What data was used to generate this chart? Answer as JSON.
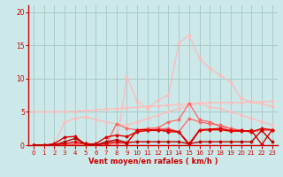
{
  "bg_color": "#cce8e8",
  "grid_color": "#aacccc",
  "axis_color": "#cc0000",
  "text_color": "#cc0000",
  "xlabel": "Vent moyen/en rafales ( km/h )",
  "xlim": [
    -0.5,
    23.5
  ],
  "ylim": [
    0,
    21
  ],
  "yticks": [
    0,
    5,
    10,
    15,
    20
  ],
  "xticks": [
    0,
    1,
    2,
    3,
    4,
    5,
    6,
    7,
    8,
    9,
    10,
    11,
    12,
    13,
    14,
    15,
    16,
    17,
    18,
    19,
    20,
    21,
    22,
    23
  ],
  "series": [
    {
      "x": [
        0,
        1,
        2,
        3,
        4,
        5,
        6,
        7,
        8,
        9,
        10,
        11,
        12,
        13,
        14,
        15,
        16,
        17,
        18,
        19,
        20,
        21,
        22,
        23
      ],
      "y": [
        5.0,
        5.0,
        5.0,
        5.0,
        5.1,
        5.2,
        5.3,
        5.4,
        5.5,
        5.6,
        5.7,
        5.8,
        5.9,
        6.0,
        6.1,
        6.2,
        6.3,
        6.4,
        6.4,
        6.4,
        6.4,
        6.5,
        6.5,
        6.6
      ],
      "color": "#ffbbbb",
      "lw": 0.9,
      "marker": "D",
      "ms": 1.5
    },
    {
      "x": [
        0,
        1,
        2,
        3,
        4,
        5,
        6,
        7,
        8,
        9,
        10,
        11,
        12,
        13,
        14,
        15,
        16,
        17,
        18,
        19,
        20,
        21,
        22,
        23
      ],
      "y": [
        0,
        0,
        0,
        3.5,
        4.0,
        4.3,
        3.8,
        3.5,
        3.2,
        3.0,
        3.5,
        4.0,
        4.5,
        5.0,
        5.5,
        5.9,
        6.4,
        5.7,
        5.5,
        5.0,
        4.5,
        4.0,
        3.5,
        3.0
      ],
      "color": "#ffbbbb",
      "lw": 0.9,
      "marker": "D",
      "ms": 1.5
    },
    {
      "x": [
        0,
        1,
        2,
        3,
        4,
        5,
        6,
        7,
        8,
        9,
        10,
        11,
        12,
        13,
        14,
        15,
        16,
        17,
        18,
        19,
        20,
        21,
        22,
        23
      ],
      "y": [
        0,
        0,
        0,
        0,
        0,
        0,
        0,
        0,
        0,
        10.3,
        6.5,
        5.5,
        6.8,
        7.5,
        15.3,
        16.5,
        13.0,
        11.5,
        10.5,
        9.5,
        7.0,
        6.5,
        6.2,
        5.8
      ],
      "color": "#ffbbbb",
      "lw": 0.9,
      "marker": "D",
      "ms": 1.5
    },
    {
      "x": [
        0,
        1,
        2,
        3,
        4,
        5,
        6,
        7,
        8,
        9,
        10,
        11,
        12,
        13,
        14,
        15,
        16,
        17,
        18,
        19,
        20,
        21,
        22,
        23
      ],
      "y": [
        0,
        0,
        0,
        0,
        0.2,
        0.3,
        0.1,
        0.1,
        3.2,
        2.5,
        2.3,
        2.5,
        2.6,
        3.5,
        3.8,
        6.3,
        3.8,
        3.5,
        2.8,
        2.5,
        2.2,
        2.0,
        2.2,
        2.2
      ],
      "color": "#ff6666",
      "lw": 0.9,
      "marker": "D",
      "ms": 1.5
    },
    {
      "x": [
        0,
        1,
        2,
        3,
        4,
        5,
        6,
        7,
        8,
        9,
        10,
        11,
        12,
        13,
        14,
        15,
        16,
        17,
        18,
        19,
        20,
        21,
        22,
        23
      ],
      "y": [
        0,
        0,
        0,
        0,
        0.1,
        0.2,
        0.0,
        0.1,
        0.3,
        0.3,
        2.2,
        2.3,
        2.4,
        2.5,
        2.0,
        4.0,
        3.5,
        3.2,
        3.0,
        2.5,
        2.2,
        2.0,
        2.3,
        2.3
      ],
      "color": "#ff6666",
      "lw": 0.9,
      "marker": "D",
      "ms": 1.5
    },
    {
      "x": [
        0,
        1,
        2,
        3,
        4,
        5,
        6,
        7,
        8,
        9,
        10,
        11,
        12,
        13,
        14,
        15,
        16,
        17,
        18,
        19,
        20,
        21,
        22,
        23
      ],
      "y": [
        0,
        0,
        0.1,
        0.2,
        0.5,
        0.2,
        0.0,
        0.3,
        0.5,
        0.3,
        2.3,
        2.3,
        2.3,
        2.0,
        2.0,
        0.2,
        2.3,
        2.4,
        2.5,
        2.2,
        2.2,
        2.0,
        2.5,
        2.3
      ],
      "color": "#dd0000",
      "lw": 1.0,
      "marker": "D",
      "ms": 1.5
    },
    {
      "x": [
        0,
        1,
        2,
        3,
        4,
        5,
        6,
        7,
        8,
        9,
        10,
        11,
        12,
        13,
        14,
        15,
        16,
        17,
        18,
        19,
        20,
        21,
        22,
        23
      ],
      "y": [
        0,
        0,
        0.2,
        1.2,
        1.3,
        0.1,
        0.2,
        1.2,
        1.5,
        1.3,
        2.0,
        2.2,
        2.2,
        2.3,
        2.0,
        0.0,
        2.2,
        2.3,
        2.3,
        2.1,
        2.1,
        2.2,
        0.1,
        2.3
      ],
      "color": "#dd0000",
      "lw": 1.0,
      "marker": "D",
      "ms": 1.5
    },
    {
      "x": [
        0,
        1,
        2,
        3,
        4,
        5,
        6,
        7,
        8,
        9,
        10,
        11,
        12,
        13,
        14,
        15,
        16,
        17,
        18,
        19,
        20,
        21,
        22,
        23
      ],
      "y": [
        0,
        0,
        0,
        0.5,
        1.0,
        0.2,
        0.0,
        0.5,
        0.8,
        0.4,
        0.5,
        0.5,
        0.5,
        0.5,
        0.5,
        0.2,
        0.5,
        0.5,
        0.5,
        0.5,
        0.5,
        0.5,
        2.2,
        0.5
      ],
      "color": "#bb0000",
      "lw": 1.0,
      "marker": "D",
      "ms": 1.5
    }
  ]
}
